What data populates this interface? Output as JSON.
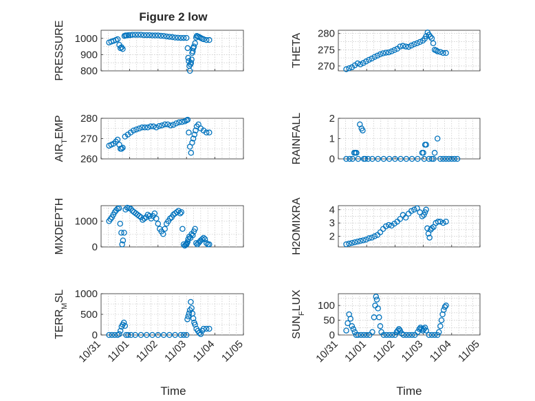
{
  "figure": {
    "title": "Figure 2 low",
    "marker_color": "#0072BD",
    "x_tick_labels": [
      "10/31",
      "11/01",
      "11/02",
      "11/03",
      "11/04",
      "11/05"
    ],
    "x_label": "Time"
  },
  "chart_data": [
    {
      "type": "scatter",
      "id": "pressure",
      "ylabel": "PRESSURE",
      "xlim": [
        0,
        5
      ],
      "ylim": [
        800,
        1050
      ],
      "yticks": [
        800,
        900,
        1000
      ],
      "x": [
        0.28,
        0.36,
        0.44,
        0.52,
        0.58,
        0.64,
        0.68,
        0.72,
        0.76,
        0.82,
        0.86,
        0.9,
        0.96,
        1.02,
        1.1,
        1.2,
        1.3,
        1.4,
        1.5,
        1.6,
        1.7,
        1.8,
        1.9,
        2.0,
        2.1,
        2.2,
        2.3,
        2.4,
        2.5,
        2.6,
        2.7,
        2.8,
        2.9,
        3.0,
        3.04,
        3.06,
        3.08,
        3.1,
        3.12,
        3.14,
        3.16,
        3.18,
        3.2,
        3.22,
        3.24,
        3.26,
        3.3,
        3.34,
        3.36,
        3.4,
        3.45,
        3.5,
        3.55,
        3.6,
        3.7,
        3.8
      ],
      "y": [
        975,
        980,
        985,
        990,
        995,
        960,
        940,
        945,
        935,
        1015,
        1018,
        1018,
        1020,
        1020,
        1022,
        1022,
        1022,
        1022,
        1020,
        1020,
        1020,
        1018,
        1018,
        1018,
        1016,
        1015,
        1012,
        1010,
        1008,
        1005,
        1004,
        1003,
        1003,
        1003,
        940,
        880,
        860,
        830,
        800,
        840,
        850,
        870,
        910,
        920,
        940,
        950,
        970,
        1005,
        1015,
        1012,
        1008,
        1003,
        998,
        995,
        990,
        990
      ]
    },
    {
      "type": "scatter",
      "id": "theta",
      "ylabel": "THETA",
      "xlim": [
        0,
        5
      ],
      "ylim": [
        268.5,
        281
      ],
      "yticks": [
        270,
        275,
        280
      ],
      "x": [
        0.28,
        0.38,
        0.48,
        0.58,
        0.68,
        0.78,
        0.88,
        0.98,
        1.08,
        1.18,
        1.28,
        1.38,
        1.48,
        1.58,
        1.68,
        1.78,
        1.88,
        1.98,
        2.08,
        2.18,
        2.28,
        2.38,
        2.48,
        2.58,
        2.68,
        2.78,
        2.88,
        2.98,
        3.05,
        3.1,
        3.15,
        3.2,
        3.25,
        3.3,
        3.35,
        3.4,
        3.45,
        3.5,
        3.6,
        3.7,
        3.8
      ],
      "y": [
        269,
        269.3,
        269.6,
        270.2,
        270.8,
        270.5,
        270.9,
        271.4,
        271.9,
        272.3,
        272.8,
        273.2,
        273.6,
        273.9,
        274.1,
        274.2,
        274.5,
        274.9,
        275.3,
        276,
        276.2,
        276,
        275.9,
        276.3,
        276.7,
        277,
        277.4,
        277.8,
        278.4,
        279.2,
        280.3,
        279.6,
        279,
        278.5,
        277,
        275,
        274.8,
        274.5,
        274.3,
        274,
        274
      ]
    },
    {
      "type": "scatter",
      "id": "air_temp",
      "ylabel": "AIR_TEMP",
      "xlim": [
        0,
        5
      ],
      "ylim": [
        260,
        280
      ],
      "yticks": [
        260,
        270,
        280
      ],
      "x": [
        0.28,
        0.36,
        0.44,
        0.52,
        0.58,
        0.64,
        0.68,
        0.72,
        0.76,
        0.84,
        0.94,
        1.04,
        1.14,
        1.24,
        1.34,
        1.44,
        1.54,
        1.64,
        1.74,
        1.84,
        1.94,
        2.04,
        2.14,
        2.24,
        2.34,
        2.44,
        2.54,
        2.64,
        2.74,
        2.84,
        2.94,
        3.0,
        3.04,
        3.08,
        3.12,
        3.16,
        3.2,
        3.24,
        3.28,
        3.32,
        3.36,
        3.42,
        3.5,
        3.6,
        3.7,
        3.8
      ],
      "y": [
        266.5,
        267,
        267.5,
        268.5,
        269.5,
        267,
        265,
        265,
        265.5,
        271,
        272,
        273,
        274,
        274.5,
        275,
        275.5,
        275.5,
        275.5,
        276,
        276,
        275.5,
        276.2,
        276.5,
        277,
        277,
        276.5,
        276.8,
        277.5,
        278,
        278.2,
        278.5,
        279,
        279.3,
        273,
        266,
        263,
        268,
        270,
        272,
        274,
        276,
        277,
        275,
        274,
        273,
        273
      ]
    },
    {
      "type": "scatter",
      "id": "rainfall",
      "ylabel": "RAINFALL",
      "xlim": [
        0,
        5
      ],
      "ylim": [
        0,
        2
      ],
      "yticks": [
        0,
        1,
        2
      ],
      "x": [
        0.28,
        0.4,
        0.5,
        0.56,
        0.6,
        0.64,
        0.7,
        0.76,
        0.82,
        0.86,
        0.9,
        0.95,
        1.05,
        1.2,
        1.4,
        1.6,
        1.8,
        2.0,
        2.2,
        2.4,
        2.6,
        2.8,
        2.96,
        3.0,
        3.03,
        3.06,
        3.1,
        3.2,
        3.3,
        3.36,
        3.4,
        3.5,
        3.6,
        3.7,
        3.8,
        3.9,
        4.0,
        4.1,
        4.2
      ],
      "y": [
        0,
        0,
        0,
        0.3,
        0.3,
        0.3,
        0,
        1.7,
        1.5,
        1.4,
        0,
        0,
        0,
        0,
        0,
        0,
        0,
        0,
        0,
        0,
        0,
        0,
        0.3,
        0.3,
        0,
        0.7,
        0.7,
        0,
        0,
        0,
        0.3,
        1.0,
        0,
        0,
        0,
        0,
        0,
        0,
        0
      ]
    },
    {
      "type": "scatter",
      "id": "mixdepth",
      "ylabel": "MIXDEPTH",
      "xlim": [
        0,
        5
      ],
      "ylim": [
        0,
        1600
      ],
      "yticks": [
        0,
        1000
      ],
      "x": [
        0.28,
        0.33,
        0.38,
        0.43,
        0.48,
        0.53,
        0.58,
        0.63,
        0.67,
        0.71,
        0.74,
        0.77,
        0.81,
        0.86,
        0.92,
        0.98,
        1.04,
        1.1,
        1.16,
        1.22,
        1.28,
        1.34,
        1.4,
        1.46,
        1.52,
        1.58,
        1.64,
        1.7,
        1.76,
        1.82,
        1.88,
        1.94,
        2.0,
        2.06,
        2.12,
        2.18,
        2.24,
        2.3,
        2.36,
        2.42,
        2.48,
        2.54,
        2.6,
        2.66,
        2.72,
        2.78,
        2.82,
        2.86,
        2.9,
        2.94,
        2.98,
        3.0,
        3.02,
        3.04,
        3.06,
        3.1,
        3.14,
        3.18,
        3.22,
        3.26,
        3.3,
        3.34,
        3.38,
        3.42,
        3.46,
        3.5,
        3.55,
        3.6,
        3.65,
        3.7,
        3.75,
        3.8
      ],
      "y": [
        1000,
        1080,
        1150,
        1250,
        1350,
        1420,
        1480,
        1500,
        900,
        550,
        100,
        250,
        550,
        1450,
        1520,
        1500,
        1480,
        1400,
        1350,
        1300,
        1250,
        1200,
        1150,
        1050,
        1100,
        1150,
        1250,
        1200,
        1100,
        1200,
        1300,
        1100,
        900,
        700,
        600,
        500,
        700,
        900,
        1000,
        1100,
        1150,
        1250,
        1300,
        1350,
        1400,
        1300,
        1350,
        700,
        100,
        50,
        80,
        100,
        150,
        200,
        300,
        400,
        350,
        500,
        450,
        600,
        700,
        150,
        100,
        150,
        200,
        250,
        300,
        350,
        300,
        150,
        100,
        100
      ]
    },
    {
      "type": "scatter",
      "id": "h2omixra",
      "ylabel": "H2OMIXRA",
      "xlim": [
        0,
        5
      ],
      "ylim": [
        1.2,
        4.3
      ],
      "yticks": [
        2,
        3,
        4
      ],
      "x": [
        0.28,
        0.38,
        0.48,
        0.58,
        0.68,
        0.78,
        0.88,
        0.98,
        1.08,
        1.18,
        1.28,
        1.38,
        1.48,
        1.58,
        1.68,
        1.78,
        1.88,
        1.98,
        2.08,
        2.18,
        2.28,
        2.38,
        2.48,
        2.58,
        2.68,
        2.78,
        2.88,
        2.96,
        3.02,
        3.06,
        3.1,
        3.14,
        3.18,
        3.22,
        3.26,
        3.3,
        3.36,
        3.44,
        3.52,
        3.6,
        3.7,
        3.8
      ],
      "y": [
        1.4,
        1.45,
        1.5,
        1.55,
        1.6,
        1.65,
        1.7,
        1.75,
        1.85,
        1.9,
        2.0,
        2.1,
        2.3,
        2.55,
        2.75,
        2.85,
        2.8,
        2.95,
        3.1,
        3.3,
        3.6,
        3.4,
        3.7,
        3.9,
        4.0,
        4.1,
        3.8,
        3.5,
        3.6,
        3.8,
        4.0,
        2.6,
        2.2,
        1.9,
        2.5,
        2.6,
        2.7,
        3.0,
        3.1,
        3.1,
        3.0,
        3.1
      ]
    },
    {
      "type": "scatter",
      "id": "terr_msl",
      "ylabel": "TERR_MSL",
      "xlim": [
        0,
        5
      ],
      "ylim": [
        0,
        1000
      ],
      "yticks": [
        0,
        500,
        1000
      ],
      "x": [
        0.28,
        0.38,
        0.48,
        0.58,
        0.64,
        0.68,
        0.72,
        0.76,
        0.8,
        0.84,
        0.88,
        0.95,
        1.05,
        1.2,
        1.4,
        1.6,
        1.8,
        2.0,
        2.2,
        2.4,
        2.6,
        2.8,
        2.9,
        3.0,
        3.03,
        3.06,
        3.09,
        3.12,
        3.15,
        3.18,
        3.21,
        3.24,
        3.27,
        3.3,
        3.35,
        3.4,
        3.45,
        3.5,
        3.55,
        3.6,
        3.7,
        3.8
      ],
      "y": [
        0,
        0,
        0,
        0,
        20,
        100,
        200,
        250,
        300,
        220,
        0,
        0,
        0,
        0,
        0,
        0,
        0,
        0,
        0,
        0,
        0,
        0,
        0,
        0,
        380,
        450,
        520,
        600,
        800,
        650,
        520,
        400,
        300,
        250,
        150,
        100,
        50,
        20,
        100,
        150,
        150,
        150
      ]
    },
    {
      "type": "scatter",
      "id": "sun_flux",
      "ylabel": "SUN_FLUX",
      "xlim": [
        0,
        5
      ],
      "ylim": [
        0,
        140
      ],
      "yticks": [
        0,
        50,
        100
      ],
      "x": [
        0.28,
        0.33,
        0.38,
        0.43,
        0.48,
        0.53,
        0.58,
        0.63,
        0.7,
        0.8,
        0.9,
        1.0,
        1.1,
        1.2,
        1.26,
        1.3,
        1.33,
        1.36,
        1.4,
        1.44,
        1.48,
        1.52,
        1.6,
        1.7,
        1.8,
        1.9,
        2.0,
        2.06,
        2.1,
        2.14,
        2.18,
        2.24,
        2.3,
        2.4,
        2.5,
        2.6,
        2.7,
        2.8,
        2.86,
        2.9,
        2.94,
        2.98,
        3.02,
        3.06,
        3.1,
        3.2,
        3.3,
        3.4,
        3.5,
        3.55,
        3.6,
        3.64,
        3.68,
        3.72,
        3.76,
        3.8
      ],
      "y": [
        15,
        40,
        70,
        55,
        30,
        20,
        10,
        0,
        0,
        0,
        0,
        0,
        0,
        10,
        60,
        100,
        130,
        120,
        90,
        60,
        30,
        10,
        0,
        0,
        0,
        0,
        0,
        10,
        15,
        20,
        15,
        5,
        0,
        0,
        0,
        0,
        0,
        10,
        20,
        25,
        20,
        15,
        20,
        25,
        15,
        0,
        0,
        0,
        0,
        10,
        30,
        50,
        70,
        85,
        95,
        100
      ]
    }
  ]
}
